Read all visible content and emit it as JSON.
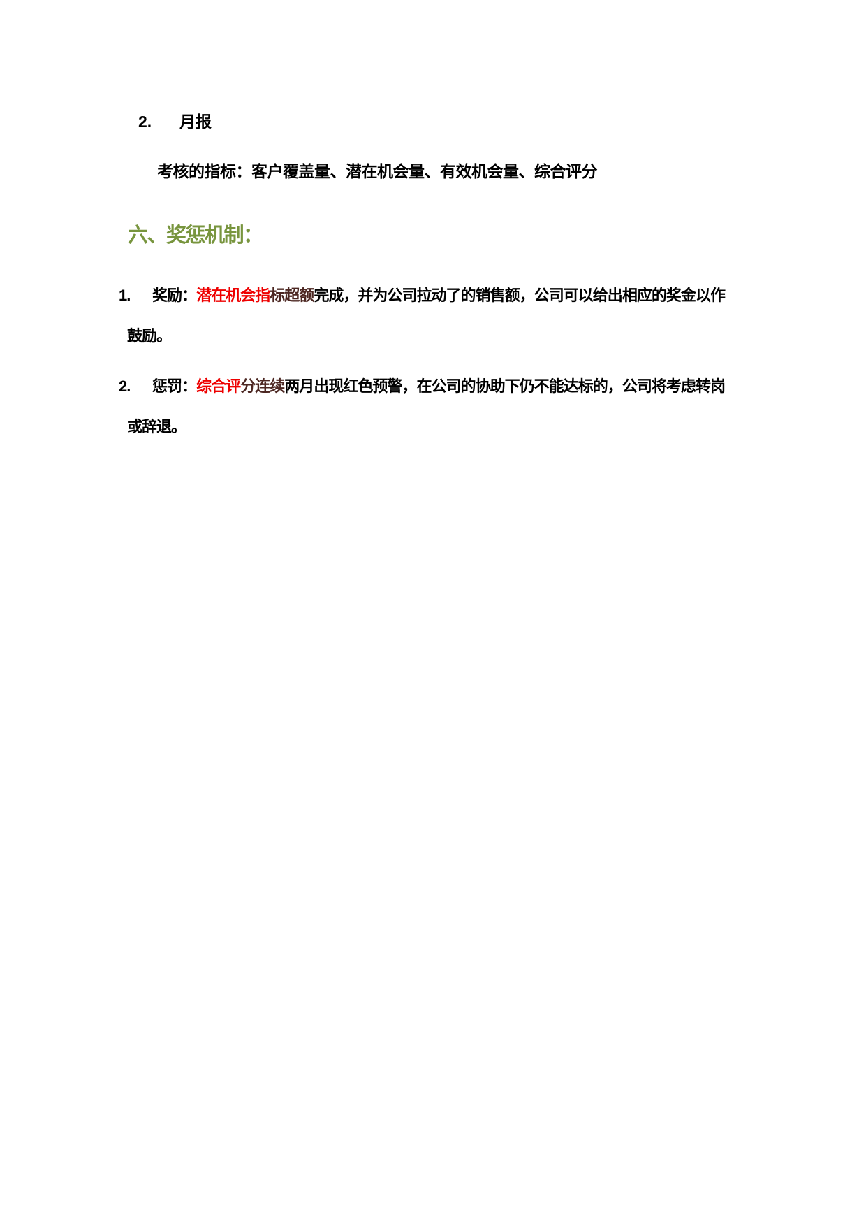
{
  "page": {
    "background": "#ffffff"
  },
  "colors": {
    "text_black": "#000000",
    "bright_red": "#ee0000",
    "dark_red": "#4c2722",
    "olive_green": "#78953e"
  },
  "monthly_report_item": {
    "number": "2.",
    "label": "月报"
  },
  "metrics_line": {
    "text": "考核的指标：客户覆盖量、潜在机会量、有效机会量、综合评分"
  },
  "section": {
    "heading": "六、奖惩机制："
  },
  "reward_item": {
    "number": "1.",
    "runs": [
      {
        "text": "奖励：",
        "color": "text_black"
      },
      {
        "text": "潜在机会指",
        "color": "bright_red"
      },
      {
        "text": "标超额",
        "color": "dark_red"
      },
      {
        "text": "完成，并为公司拉动了的销售额，公司可以给出相应的奖金以作鼓励。",
        "color": "text_black"
      }
    ]
  },
  "punishment_item": {
    "number": "2.",
    "runs": [
      {
        "text": "惩罚：",
        "color": "text_black"
      },
      {
        "text": "综合评",
        "color": "bright_red"
      },
      {
        "text": "分连续",
        "color": "dark_red"
      },
      {
        "text": "两月出现红色预警，在公司的协助下仍不能达标的，公司将考虑转岗或辞退。",
        "color": "text_black"
      }
    ]
  }
}
